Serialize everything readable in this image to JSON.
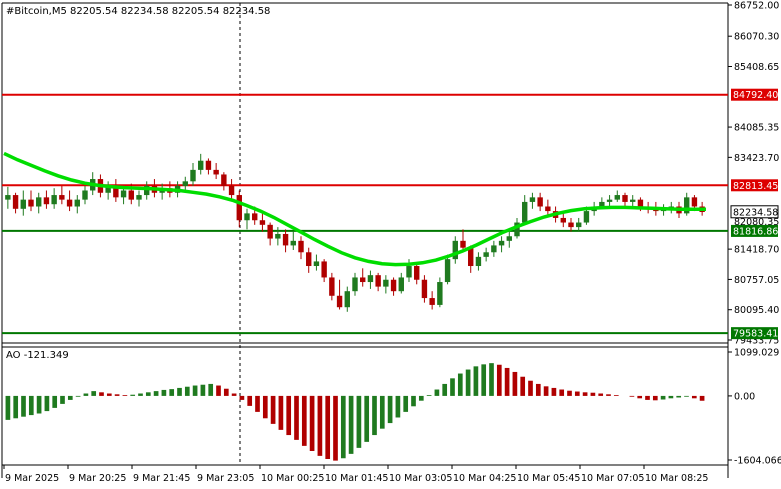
{
  "header": {
    "title": "#Bitcoin,M5  82205.54 82234.58 82205.54 82234.58",
    "ao_label": "AO -121.349"
  },
  "colors": {
    "bullish": "#1f7a1f",
    "bearish": "#b00000",
    "ma": "#00dd00",
    "resistance": "#dd0000",
    "support": "#007700",
    "axis": "#000000",
    "price_tag": "#000000"
  },
  "chart_data": [
    {
      "type": "candlestick",
      "symbol": "#Bitcoin",
      "timeframe": "M5",
      "ylim": [
        79433.75,
        86752.0
      ],
      "y_tick_labels": [
        "86752.00",
        "86070.30",
        "85408.65",
        "84085.35",
        "83423.70",
        "81418.70",
        "80757.05",
        "80095.40",
        "79433.75"
      ],
      "y_ticks": [
        86752.0,
        86070.3,
        85408.65,
        84085.35,
        83423.7,
        81418.7,
        80757.05,
        80095.4,
        79433.75
      ],
      "x_tick_labels": [
        "9 Mar 2025",
        "9 Mar 20:25",
        "9 Mar 21:45",
        "9 Mar 23:05",
        "10 Mar 00:25",
        "10 Mar 01:45",
        "10 Mar 03:05",
        "10 Mar 04:25",
        "10 Mar 05:45",
        "10 Mar 07:05",
        "10 Mar 08:25"
      ],
      "levels": [
        {
          "value": 84792.4,
          "label": "84792.40",
          "color": "#dd0000"
        },
        {
          "value": 82813.45,
          "label": "82813.45",
          "color": "#dd0000"
        },
        {
          "value": 81816.86,
          "label": "81816.86",
          "color": "#007700"
        },
        {
          "value": 79583.41,
          "label": "79583.41",
          "color": "#007700"
        }
      ],
      "current_price": {
        "value": 82234.58,
        "label": "82234.58"
      },
      "partial_label": "82080.35",
      "ma_points": [
        83510,
        83370,
        83250,
        83130,
        83020,
        82930,
        82860,
        82810,
        82780,
        82760,
        82750,
        82740,
        82720,
        82700,
        82660,
        82620,
        82560,
        82480,
        82370,
        82250,
        82110,
        81950,
        81790,
        81630,
        81480,
        81340,
        81230,
        81150,
        81100,
        81080,
        81090,
        81120,
        81180,
        81270,
        81380,
        81510,
        81650,
        81790,
        81910,
        82020,
        82120,
        82200,
        82260,
        82300,
        82320,
        82330,
        82330,
        82320,
        82310,
        82300,
        82290,
        82290,
        82290
      ],
      "candles": [
        {
          "o": 82500,
          "h": 82780,
          "l": 82300,
          "c": 82600
        },
        {
          "o": 82600,
          "h": 82650,
          "l": 82200,
          "c": 82300
        },
        {
          "o": 82300,
          "h": 82700,
          "l": 82150,
          "c": 82500
        },
        {
          "o": 82500,
          "h": 82700,
          "l": 82250,
          "c": 82350
        },
        {
          "o": 82350,
          "h": 82650,
          "l": 82200,
          "c": 82550
        },
        {
          "o": 82550,
          "h": 82700,
          "l": 82300,
          "c": 82400
        },
        {
          "o": 82400,
          "h": 82750,
          "l": 82300,
          "c": 82600
        },
        {
          "o": 82600,
          "h": 82800,
          "l": 82400,
          "c": 82500
        },
        {
          "o": 82500,
          "h": 82700,
          "l": 82250,
          "c": 82350
        },
        {
          "o": 82350,
          "h": 82600,
          "l": 82200,
          "c": 82500
        },
        {
          "o": 82500,
          "h": 82800,
          "l": 82400,
          "c": 82700
        },
        {
          "o": 82700,
          "h": 83100,
          "l": 82600,
          "c": 82950
        },
        {
          "o": 82950,
          "h": 83050,
          "l": 82550,
          "c": 82650
        },
        {
          "o": 82650,
          "h": 82900,
          "l": 82500,
          "c": 82800
        },
        {
          "o": 82800,
          "h": 82950,
          "l": 82450,
          "c": 82550
        },
        {
          "o": 82550,
          "h": 82800,
          "l": 82400,
          "c": 82700
        },
        {
          "o": 82700,
          "h": 82850,
          "l": 82400,
          "c": 82500
        },
        {
          "o": 82500,
          "h": 82700,
          "l": 82350,
          "c": 82600
        },
        {
          "o": 82600,
          "h": 82900,
          "l": 82500,
          "c": 82800
        },
        {
          "o": 82800,
          "h": 82950,
          "l": 82550,
          "c": 82650
        },
        {
          "o": 82650,
          "h": 82850,
          "l": 82500,
          "c": 82750
        },
        {
          "o": 82750,
          "h": 82900,
          "l": 82550,
          "c": 82650
        },
        {
          "o": 82650,
          "h": 82900,
          "l": 82550,
          "c": 82800
        },
        {
          "o": 82800,
          "h": 83000,
          "l": 82650,
          "c": 82900
        },
        {
          "o": 82900,
          "h": 83300,
          "l": 82800,
          "c": 83150
        },
        {
          "o": 83150,
          "h": 83500,
          "l": 83050,
          "c": 83350
        },
        {
          "o": 83350,
          "h": 83400,
          "l": 83050,
          "c": 83150
        },
        {
          "o": 83150,
          "h": 83300,
          "l": 82950,
          "c": 83050
        },
        {
          "o": 83050,
          "h": 83100,
          "l": 82700,
          "c": 82800
        },
        {
          "o": 82800,
          "h": 82950,
          "l": 82500,
          "c": 82600
        },
        {
          "o": 82600,
          "h": 82700,
          "l": 81900,
          "c": 82050
        },
        {
          "o": 82050,
          "h": 82300,
          "l": 81850,
          "c": 82200
        },
        {
          "o": 82200,
          "h": 82350,
          "l": 81950,
          "c": 82050
        },
        {
          "o": 82050,
          "h": 82250,
          "l": 81800,
          "c": 81950
        },
        {
          "o": 81950,
          "h": 82000,
          "l": 81500,
          "c": 81650
        },
        {
          "o": 81650,
          "h": 81900,
          "l": 81500,
          "c": 81750
        },
        {
          "o": 81750,
          "h": 81850,
          "l": 81350,
          "c": 81500
        },
        {
          "o": 81500,
          "h": 81800,
          "l": 81400,
          "c": 81600
        },
        {
          "o": 81600,
          "h": 81700,
          "l": 81200,
          "c": 81350
        },
        {
          "o": 81350,
          "h": 81450,
          "l": 80900,
          "c": 81050
        },
        {
          "o": 81050,
          "h": 81300,
          "l": 80950,
          "c": 81150
        },
        {
          "o": 81150,
          "h": 81200,
          "l": 80700,
          "c": 80800
        },
        {
          "o": 80800,
          "h": 80900,
          "l": 80300,
          "c": 80400
        },
        {
          "o": 80400,
          "h": 80750,
          "l": 80100,
          "c": 80150
        },
        {
          "o": 80150,
          "h": 80600,
          "l": 80050,
          "c": 80500
        },
        {
          "o": 80500,
          "h": 80900,
          "l": 80400,
          "c": 80800
        },
        {
          "o": 80800,
          "h": 81000,
          "l": 80600,
          "c": 80700
        },
        {
          "o": 80700,
          "h": 80950,
          "l": 80550,
          "c": 80850
        },
        {
          "o": 80850,
          "h": 80900,
          "l": 80500,
          "c": 80600
        },
        {
          "o": 80600,
          "h": 80850,
          "l": 80450,
          "c": 80750
        },
        {
          "o": 80750,
          "h": 80800,
          "l": 80400,
          "c": 80500
        },
        {
          "o": 80500,
          "h": 80900,
          "l": 80450,
          "c": 80800
        },
        {
          "o": 80800,
          "h": 81200,
          "l": 80700,
          "c": 81050
        },
        {
          "o": 81050,
          "h": 81100,
          "l": 80650,
          "c": 80750
        },
        {
          "o": 80750,
          "h": 80850,
          "l": 80250,
          "c": 80350
        },
        {
          "o": 80350,
          "h": 80500,
          "l": 80100,
          "c": 80200
        },
        {
          "o": 80200,
          "h": 80800,
          "l": 80150,
          "c": 80700
        },
        {
          "o": 80700,
          "h": 81300,
          "l": 80650,
          "c": 81200
        },
        {
          "o": 81200,
          "h": 81700,
          "l": 81100,
          "c": 81600
        },
        {
          "o": 81600,
          "h": 81850,
          "l": 81350,
          "c": 81450
        },
        {
          "o": 81450,
          "h": 81500,
          "l": 80900,
          "c": 81050
        },
        {
          "o": 81050,
          "h": 81350,
          "l": 80950,
          "c": 81250
        },
        {
          "o": 81250,
          "h": 81450,
          "l": 81150,
          "c": 81350
        },
        {
          "o": 81350,
          "h": 81600,
          "l": 81250,
          "c": 81500
        },
        {
          "o": 81500,
          "h": 81700,
          "l": 81350,
          "c": 81600
        },
        {
          "o": 81600,
          "h": 81800,
          "l": 81450,
          "c": 81700
        },
        {
          "o": 81700,
          "h": 82100,
          "l": 81650,
          "c": 82000
        },
        {
          "o": 82000,
          "h": 82600,
          "l": 81950,
          "c": 82450
        },
        {
          "o": 82450,
          "h": 82650,
          "l": 82300,
          "c": 82550
        },
        {
          "o": 82550,
          "h": 82650,
          "l": 82250,
          "c": 82350
        },
        {
          "o": 82350,
          "h": 82500,
          "l": 82150,
          "c": 82250
        },
        {
          "o": 82250,
          "h": 82350,
          "l": 82000,
          "c": 82100
        },
        {
          "o": 82100,
          "h": 82250,
          "l": 81900,
          "c": 82000
        },
        {
          "o": 82000,
          "h": 82100,
          "l": 81800,
          "c": 81900
        },
        {
          "o": 81900,
          "h": 82100,
          "l": 81800,
          "c": 82000
        },
        {
          "o": 82000,
          "h": 82350,
          "l": 81950,
          "c": 82250
        },
        {
          "o": 82250,
          "h": 82450,
          "l": 82150,
          "c": 82350
        },
        {
          "o": 82350,
          "h": 82550,
          "l": 82300,
          "c": 82450
        },
        {
          "o": 82450,
          "h": 82600,
          "l": 82350,
          "c": 82500
        },
        {
          "o": 82500,
          "h": 82700,
          "l": 82450,
          "c": 82600
        },
        {
          "o": 82600,
          "h": 82650,
          "l": 82350,
          "c": 82450
        },
        {
          "o": 82450,
          "h": 82600,
          "l": 82300,
          "c": 82500
        },
        {
          "o": 82500,
          "h": 82550,
          "l": 82250,
          "c": 82350
        },
        {
          "o": 82350,
          "h": 82450,
          "l": 82200,
          "c": 82300
        },
        {
          "o": 82300,
          "h": 82450,
          "l": 82150,
          "c": 82250
        },
        {
          "o": 82250,
          "h": 82400,
          "l": 82150,
          "c": 82300
        },
        {
          "o": 82300,
          "h": 82450,
          "l": 82200,
          "c": 82350
        },
        {
          "o": 82350,
          "h": 82450,
          "l": 82100,
          "c": 82200
        },
        {
          "o": 82200,
          "h": 82650,
          "l": 82150,
          "c": 82550
        },
        {
          "o": 82550,
          "h": 82600,
          "l": 82250,
          "c": 82350
        },
        {
          "o": 82350,
          "h": 82450,
          "l": 82150,
          "c": 82230
        }
      ]
    },
    {
      "type": "histogram",
      "name": "AO",
      "ylim": [
        -1604.066,
        1099.029
      ],
      "y_tick_labels": [
        "1099.029",
        "0.00",
        "-1604.066"
      ],
      "values": [
        -600,
        -560,
        -520,
        -480,
        -440,
        -380,
        -300,
        -200,
        -100,
        -20,
        60,
        120,
        90,
        60,
        40,
        20,
        30,
        60,
        90,
        120,
        150,
        170,
        200,
        230,
        260,
        280,
        300,
        260,
        180,
        60,
        -100,
        -250,
        -400,
        -560,
        -700,
        -850,
        -980,
        -1100,
        -1250,
        -1380,
        -1500,
        -1580,
        -1620,
        -1560,
        -1450,
        -1300,
        -1150,
        -980,
        -820,
        -680,
        -540,
        -400,
        -260,
        -120,
        20,
        160,
        300,
        440,
        560,
        660,
        740,
        790,
        820,
        780,
        700,
        600,
        480,
        380,
        300,
        240,
        200,
        160,
        130,
        110,
        90,
        80,
        60,
        40,
        20,
        0,
        -20,
        -60,
        -100,
        -110,
        -90,
        -60,
        -40,
        -20,
        -60,
        -121
      ]
    }
  ]
}
